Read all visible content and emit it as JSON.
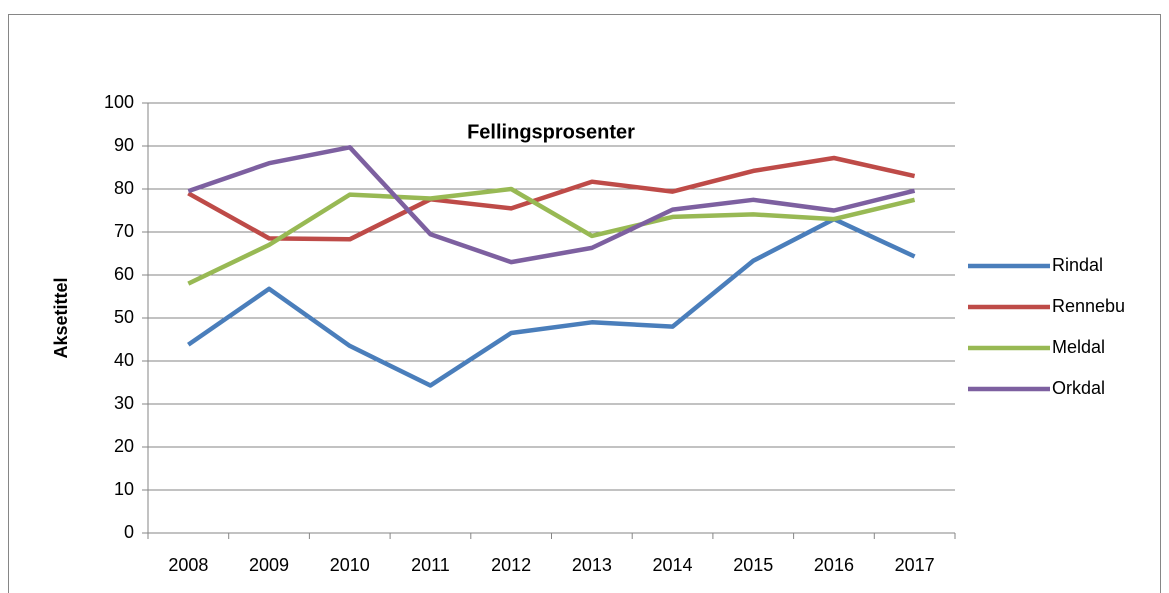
{
  "chart_data": {
    "type": "line",
    "title": "Fellingsprosenter",
    "y_label": "Aksetittel",
    "categories": [
      "2008",
      "2009",
      "2010",
      "2011",
      "2012",
      "2013",
      "2014",
      "2015",
      "2016",
      "2017"
    ],
    "series": [
      {
        "name": "Rindal",
        "color": "#4a7ebb",
        "values": [
          43.8,
          56.8,
          43.5,
          34.3,
          46.5,
          49,
          48,
          63.3,
          73,
          64.3
        ]
      },
      {
        "name": "Rennebu",
        "color": "#be4b48",
        "values": [
          79,
          68.5,
          68.3,
          77.6,
          75.5,
          81.7,
          79.4,
          84.2,
          87.2,
          83
        ]
      },
      {
        "name": "Meldal",
        "color": "#98b954",
        "values": [
          58,
          67,
          78.7,
          77.8,
          80,
          69.1,
          73.5,
          74.1,
          73,
          77.5
        ]
      },
      {
        "name": "Orkdal",
        "color": "#7d60a0",
        "values": [
          79.5,
          86,
          89.7,
          69.5,
          63,
          66.3,
          75.2,
          77.5,
          75,
          79.6
        ]
      }
    ],
    "ylim": [
      0,
      100
    ],
    "yticks": [
      0,
      10,
      20,
      30,
      40,
      50,
      60,
      70,
      80,
      90,
      100
    ],
    "grid": true,
    "legend": "right"
  }
}
